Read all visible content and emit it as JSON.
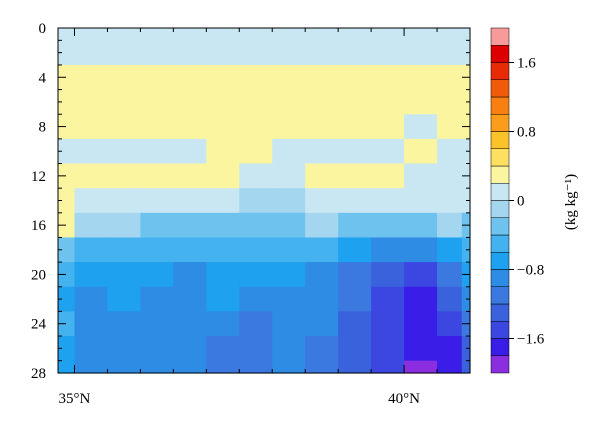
{
  "chart_data": {
    "type": "heatmap",
    "title": "",
    "xlabel": "",
    "ylabel": "",
    "x_ticks": [
      {
        "value": 35,
        "label": "35°N"
      },
      {
        "value": 40,
        "label": "40°N"
      }
    ],
    "x_range": [
      34.75,
      41.0
    ],
    "y_ticks": [
      0,
      4,
      8,
      12,
      16,
      20,
      24,
      28
    ],
    "y_range": [
      0,
      28
    ],
    "y_reversed": true,
    "colorbar": {
      "label": "(kg kg⁻¹)",
      "ticks": [
        1.6,
        0.8,
        0,
        -0.8,
        -1.6
      ],
      "levels": [
        -2.0,
        -1.8,
        -1.6,
        -1.4,
        -1.2,
        -1.0,
        -0.8,
        -0.6,
        -0.4,
        -0.2,
        0,
        0.2,
        0.4,
        0.6,
        0.8,
        1.0,
        1.2,
        1.4,
        1.6,
        1.8,
        2.0
      ],
      "colors": [
        "#8b2ee0",
        "#3a1ee8",
        "#3c46e0",
        "#3a62dc",
        "#3b78df",
        "#2f8ce4",
        "#1ea1ee",
        "#44b2ee",
        "#6ec3ee",
        "#a4d7ef",
        "#c9e7f3",
        "#fbf5a0",
        "#fde060",
        "#fcc22a",
        "#fb9d1a",
        "#f98010",
        "#f05a08",
        "#e82a05",
        "#dc0000",
        "#f79a9a"
      ]
    },
    "field": [
      {
        "depth": 0,
        "values": [
          0.1,
          0.1,
          0.1,
          0.1,
          0.1,
          0.1,
          0.1,
          0.1,
          0.1,
          0.1,
          0.1,
          0.1,
          0.1,
          0.1
        ]
      },
      {
        "depth": 2,
        "values": [
          0.1,
          0.1,
          0.1,
          0.1,
          0.1,
          0.1,
          0.1,
          0.1,
          0.1,
          0.1,
          0.1,
          0.1,
          0.1,
          0.1
        ]
      },
      {
        "depth": 4,
        "values": [
          0.3,
          0.3,
          0.3,
          0.3,
          0.3,
          0.3,
          0.3,
          0.3,
          0.3,
          0.3,
          0.3,
          0.3,
          0.3,
          0.3
        ]
      },
      {
        "depth": 6,
        "values": [
          0.3,
          0.3,
          0.3,
          0.3,
          0.3,
          0.3,
          0.3,
          0.3,
          0.3,
          0.3,
          0.3,
          0.3,
          0.3,
          0.3
        ]
      },
      {
        "depth": 8,
        "values": [
          0.3,
          0.3,
          0.3,
          0.3,
          0.3,
          0.3,
          0.3,
          0.3,
          0.3,
          0.3,
          0.3,
          0.1,
          0.3,
          0.3
        ]
      },
      {
        "depth": 10,
        "values": [
          0.1,
          0.1,
          0.1,
          0.1,
          0.1,
          0.3,
          0.3,
          0.1,
          0.1,
          0.1,
          0.1,
          0.3,
          0.1,
          0.1
        ]
      },
      {
        "depth": 12,
        "values": [
          0.3,
          0.3,
          0.3,
          0.3,
          0.3,
          0.3,
          0.1,
          0.1,
          0.3,
          0.3,
          0.3,
          0.1,
          0.1,
          0.1
        ]
      },
      {
        "depth": 14,
        "values": [
          0.3,
          0.1,
          0.1,
          0.1,
          0.1,
          0.1,
          -0.1,
          -0.1,
          0.1,
          0.1,
          0.1,
          0.1,
          0.1,
          0.1
        ]
      },
      {
        "depth": 16,
        "values": [
          0.3,
          -0.1,
          -0.1,
          -0.3,
          -0.3,
          -0.3,
          -0.3,
          -0.3,
          -0.1,
          -0.3,
          -0.3,
          -0.3,
          -0.1,
          -0.3
        ]
      },
      {
        "depth": 18,
        "values": [
          -0.3,
          -0.5,
          -0.5,
          -0.5,
          -0.5,
          -0.5,
          -0.5,
          -0.5,
          -0.5,
          -0.7,
          -0.9,
          -0.9,
          -0.7,
          -0.5
        ]
      },
      {
        "depth": 20,
        "values": [
          -0.5,
          -0.7,
          -0.7,
          -0.7,
          -0.9,
          -0.7,
          -0.7,
          -0.7,
          -0.9,
          -1.1,
          -1.3,
          -1.5,
          -1.1,
          -0.7
        ]
      },
      {
        "depth": 22,
        "values": [
          -0.7,
          -0.9,
          -0.7,
          -0.9,
          -0.9,
          -0.7,
          -0.9,
          -0.9,
          -0.9,
          -1.1,
          -1.5,
          -1.7,
          -1.3,
          -0.9
        ]
      },
      {
        "depth": 24,
        "values": [
          -0.5,
          -0.9,
          -0.9,
          -0.9,
          -0.9,
          -0.9,
          -1.1,
          -0.9,
          -0.9,
          -1.3,
          -1.5,
          -1.7,
          -1.5,
          -1.1
        ]
      },
      {
        "depth": 26,
        "values": [
          -0.7,
          -0.9,
          -0.9,
          -0.9,
          -0.9,
          -1.1,
          -1.1,
          -0.9,
          -1.1,
          -1.3,
          -1.5,
          -1.7,
          -1.7,
          -1.3
        ]
      },
      {
        "depth": 28,
        "values": [
          -0.7,
          -0.9,
          -0.9,
          -0.9,
          -0.9,
          -1.1,
          -1.1,
          -0.9,
          -1.1,
          -1.3,
          -1.5,
          -1.9,
          -1.7,
          -1.3
        ]
      }
    ],
    "field_latitudes": [
      34.75,
      35.25,
      35.75,
      36.25,
      36.75,
      37.25,
      37.75,
      38.25,
      38.75,
      39.25,
      39.75,
      40.25,
      40.75,
      41.0
    ],
    "grid": false,
    "legend": "right"
  }
}
